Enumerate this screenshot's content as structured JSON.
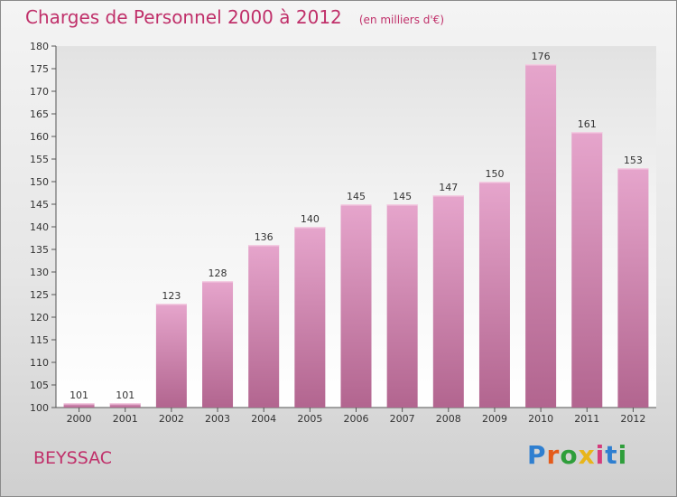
{
  "header": {
    "title": "Charges de Personnel 2000 à 2012",
    "unit": "(en milliers d'€)"
  },
  "footer": {
    "city": "BEYSSAC",
    "logo_text": "Proxiti",
    "logo_colors": [
      "#2f7fd0",
      "#e45b1b",
      "#2f9e3b",
      "#e8b51a",
      "#d43b7c",
      "#2f7fd0",
      "#2f9e3b"
    ]
  },
  "colors": {
    "title": "#c0306a",
    "bar_top": "#e6a5cc",
    "bar_bottom": "#b2658f",
    "axis": "#555555",
    "text": "#333333"
  },
  "chart_data": {
    "type": "bar",
    "title": "Charges de Personnel 2000 à 2012",
    "subtitle": "(en milliers d'€)",
    "xlabel": "",
    "ylabel": "",
    "categories": [
      "2000",
      "2001",
      "2002",
      "2003",
      "2004",
      "2005",
      "2006",
      "2007",
      "2008",
      "2009",
      "2010",
      "2011",
      "2012"
    ],
    "values": [
      101,
      101,
      123,
      128,
      136,
      140,
      145,
      145,
      147,
      150,
      176,
      161,
      153
    ],
    "ylim": [
      100,
      180
    ],
    "yticks": [
      100,
      105,
      110,
      115,
      120,
      125,
      130,
      135,
      140,
      145,
      150,
      155,
      160,
      165,
      170,
      175,
      180
    ],
    "grid": false,
    "legend": "none"
  }
}
